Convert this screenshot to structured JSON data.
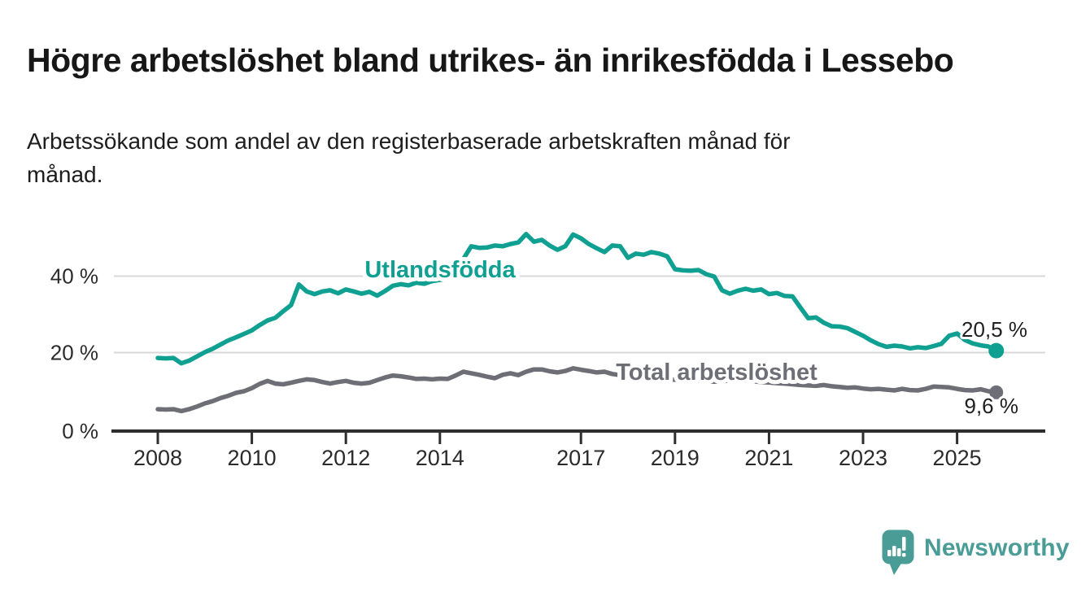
{
  "header": {
    "title": "Högre arbetslöshet bland utrikes- än inrikesfödda i Lessebo",
    "subtitle": "Arbetssökande som andel av den registerbaserade arbetskraften månad för\nmånad."
  },
  "chart_data": {
    "type": "line",
    "x_start": 2008.0,
    "x_end": 2025.833,
    "x_unit": "year (monthly series, sampled bimonthly)",
    "x_ticks": [
      "2008",
      "2010",
      "2012",
      "2014",
      "2017",
      "2019",
      "2021",
      "2023",
      "2025"
    ],
    "x_tick_years": [
      2008,
      2010,
      2012,
      2014,
      2017,
      2019,
      2021,
      2023,
      2025
    ],
    "y_ticks": [
      {
        "label": "0 %",
        "value": 0
      },
      {
        "label": "20 %",
        "value": 20
      },
      {
        "label": "40 %",
        "value": 40
      }
    ],
    "ylim": [
      0,
      55
    ],
    "grid": "horizontal",
    "legend_position": "inline-labels",
    "series": [
      {
        "name": "Total arbetslöshet",
        "color": "#6e6e76",
        "end_label": "9,6 %",
        "end_value": 9.6,
        "values": [
          5.2,
          5.1,
          5.2,
          4.7,
          5.2,
          5.9,
          6.7,
          7.3,
          8.1,
          8.7,
          9.5,
          9.9,
          10.7,
          11.8,
          12.6,
          11.9,
          11.7,
          12.1,
          12.6,
          13.0,
          12.8,
          12.3,
          11.9,
          12.3,
          12.6,
          12.1,
          11.9,
          12.1,
          12.8,
          13.5,
          14.0,
          13.8,
          13.5,
          13.1,
          13.2,
          13.0,
          13.2,
          13.1,
          14.0,
          15.0,
          14.6,
          14.2,
          13.7,
          13.3,
          14.2,
          14.6,
          14.1,
          15.0,
          15.6,
          15.6,
          15.1,
          14.8,
          15.2,
          15.9,
          15.5,
          15.2,
          14.8,
          15.0,
          14.4,
          14.1,
          13.9,
          13.7,
          13.5,
          13.3,
          13.2,
          13.0,
          12.9,
          12.8,
          12.7,
          12.6,
          12.5,
          12.4,
          12.5,
          12.7,
          12.9,
          12.7,
          12.5,
          12.3,
          12.2,
          12.0,
          11.9,
          11.7,
          11.5,
          11.4,
          11.3,
          11.5,
          11.2,
          11.0,
          10.8,
          10.9,
          10.6,
          10.4,
          10.5,
          10.3,
          10.1,
          10.5,
          10.2,
          10.1,
          10.5,
          11.1,
          11.0,
          10.9,
          10.5,
          10.2,
          10.1,
          10.4,
          9.9,
          9.6
        ]
      },
      {
        "name": "Utlandsfödda",
        "color": "#10a092",
        "end_label": "20,5 %",
        "end_value": 20.5,
        "values": [
          18.6,
          18.5,
          18.6,
          17.2,
          17.9,
          19.0,
          20.1,
          21.0,
          22.1,
          23.2,
          24.0,
          24.9,
          25.8,
          27.2,
          28.4,
          29.1,
          30.8,
          32.4,
          37.8,
          36.0,
          35.3,
          36.0,
          36.3,
          35.5,
          36.5,
          36.0,
          35.4,
          35.9,
          34.9,
          36.1,
          37.5,
          37.9,
          37.6,
          38.3,
          38.0,
          38.7,
          39.0,
          39.4,
          41.0,
          44.5,
          47.8,
          47.4,
          47.5,
          48.0,
          47.8,
          48.4,
          48.8,
          51.0,
          49.0,
          49.5,
          48.0,
          46.9,
          47.8,
          50.9,
          49.9,
          48.4,
          47.3,
          46.3,
          48.0,
          47.8,
          44.8,
          45.9,
          45.6,
          46.3,
          45.9,
          45.2,
          41.8,
          41.5,
          41.4,
          41.6,
          40.5,
          39.9,
          36.3,
          35.4,
          36.2,
          36.7,
          36.2,
          36.5,
          35.3,
          35.6,
          34.8,
          34.7,
          31.8,
          29.0,
          29.2,
          27.8,
          26.9,
          26.8,
          26.4,
          25.4,
          24.4,
          23.2,
          22.2,
          21.5,
          21.8,
          21.6,
          21.1,
          21.4,
          21.2,
          21.7,
          22.3,
          24.4,
          25.0,
          23.3,
          22.4,
          21.9,
          21.6,
          20.5
        ]
      }
    ]
  },
  "footer": {
    "brand": "Newsworthy",
    "brand_color": "#4a9c96",
    "logo_icon": "speech-bubble-bar-chart-icon"
  }
}
